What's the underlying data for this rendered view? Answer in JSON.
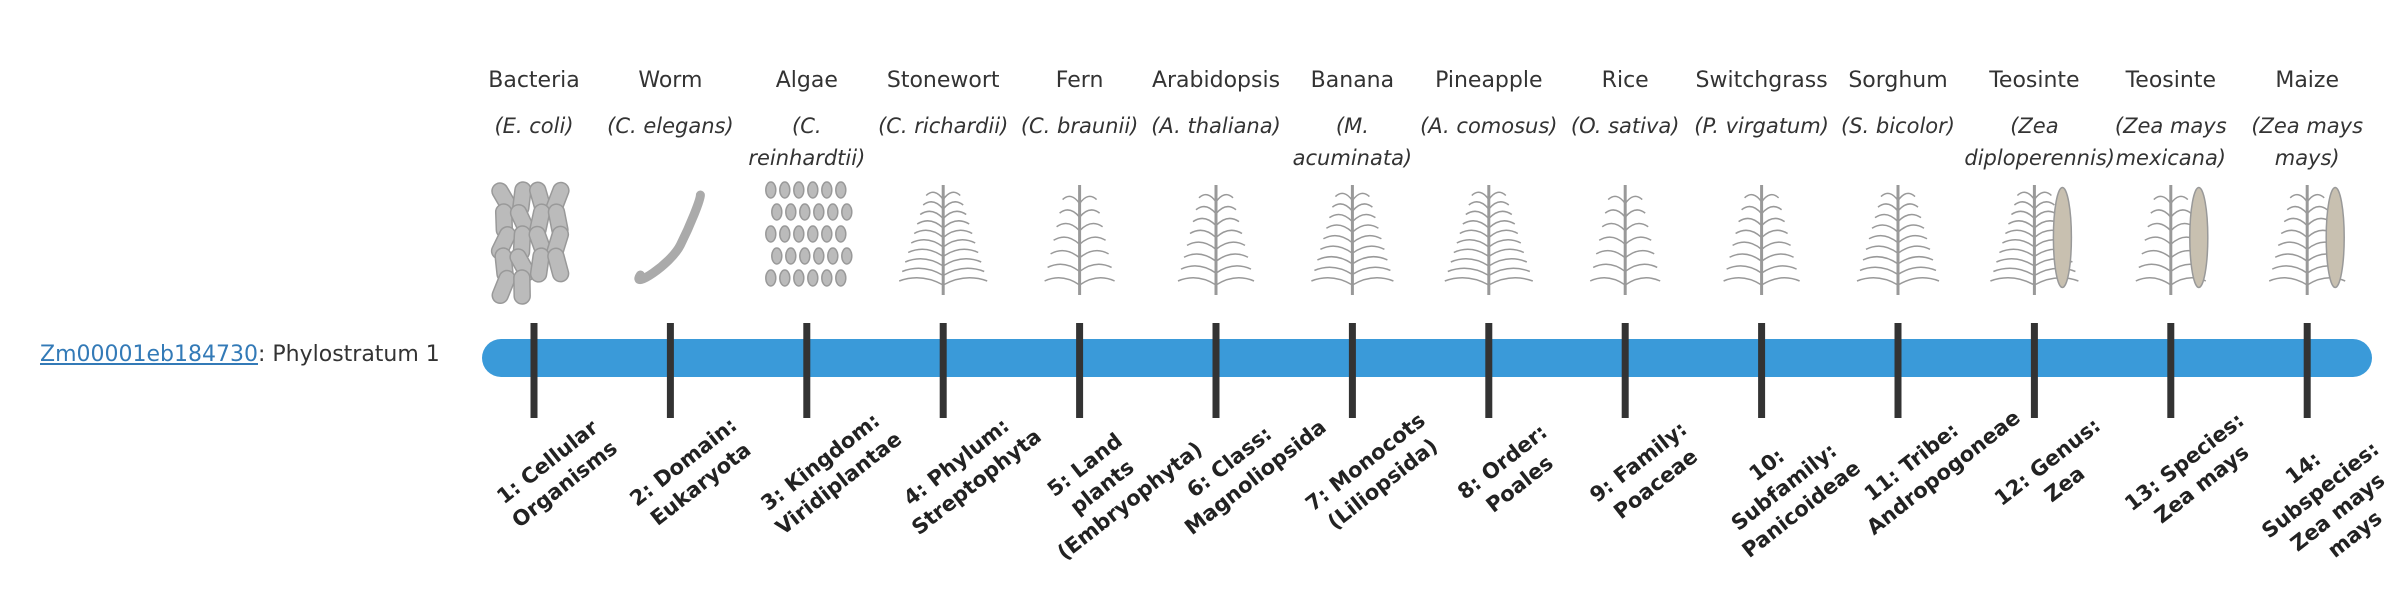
{
  "gene": {
    "id": "Zm00001eb184730",
    "text": ": Phylostratum 1"
  },
  "organisms": [
    {
      "name": "Bacteria",
      "species": "(E. coli)"
    },
    {
      "name": "Worm",
      "species": "(C. elegans)"
    },
    {
      "name": "Algae",
      "species": "(C. reinhardtii)"
    },
    {
      "name": "Stonewort",
      "species": "(C. richardii)"
    },
    {
      "name": "Fern",
      "species": "(C. braunii)"
    },
    {
      "name": "Arabidopsis",
      "species": "(A. thaliana)"
    },
    {
      "name": "Banana",
      "species": "(M. acuminata)"
    },
    {
      "name": "Pineapple",
      "species": "(A. comosus)"
    },
    {
      "name": "Rice",
      "species": "(O. sativa)"
    },
    {
      "name": "Switchgrass",
      "species": "(P. virgatum)"
    },
    {
      "name": "Sorghum",
      "species": "(S. bicolor)"
    },
    {
      "name": "Teosinte",
      "species": "(Zea diploperennis)"
    },
    {
      "name": "Teosinte",
      "species": "(Zea mays mexicana)"
    },
    {
      "name": "Maize",
      "species": "(Zea mays mays)"
    }
  ],
  "strata": [
    "1: Cellular Organisms",
    "2: Domain: Eukaryota",
    "3: Kingdom: Viridiplantae",
    "4: Phylum: Streptophyta",
    "5: Land plants (Embryophyta)",
    "6: Class: Magnoliopsida",
    "7: Monocots (Liliopsida)",
    "8: Order: Poales",
    "9: Family: Poaceae",
    "10: Subfamily: Panicoideae",
    "11: Tribe: Andropogoneae",
    "12: Genus: Zea",
    "13: Species: Zea mays",
    "14: Subspecies: Zea mays mays"
  ]
}
